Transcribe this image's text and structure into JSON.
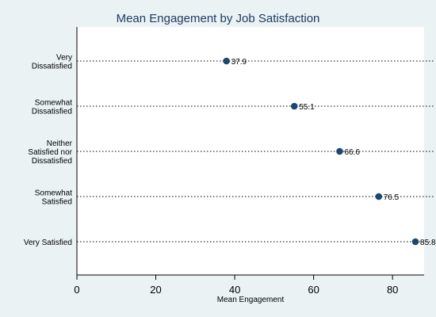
{
  "chart_data": {
    "type": "scatter",
    "title": "Mean Engagement by Job Satisfaction",
    "xlabel": "Mean Engagement",
    "ylabel": "",
    "xlim": [
      0,
      88
    ],
    "xticks": [
      0,
      20,
      40,
      60,
      80
    ],
    "categories": [
      [
        "Very",
        "Dissatisfied"
      ],
      [
        "Somewhat",
        "Dissatisfied"
      ],
      [
        "Neither",
        "Satisfied nor",
        "Dissatisfied"
      ],
      [
        "Somewhat",
        "Satisfied"
      ],
      [
        "Very Satisfied"
      ]
    ],
    "values": [
      37.9,
      55.1,
      66.6,
      76.5,
      85.8
    ],
    "data_labels": [
      "37.9",
      "55.1",
      "66.6",
      "76.5",
      "85.8"
    ],
    "grid": "dotted horizontal lines per category",
    "marker_color": "#1a476f",
    "background_color": "#eaf2f3",
    "plot_background_color": "#ffffff",
    "title_color": "#1e3a64"
  }
}
